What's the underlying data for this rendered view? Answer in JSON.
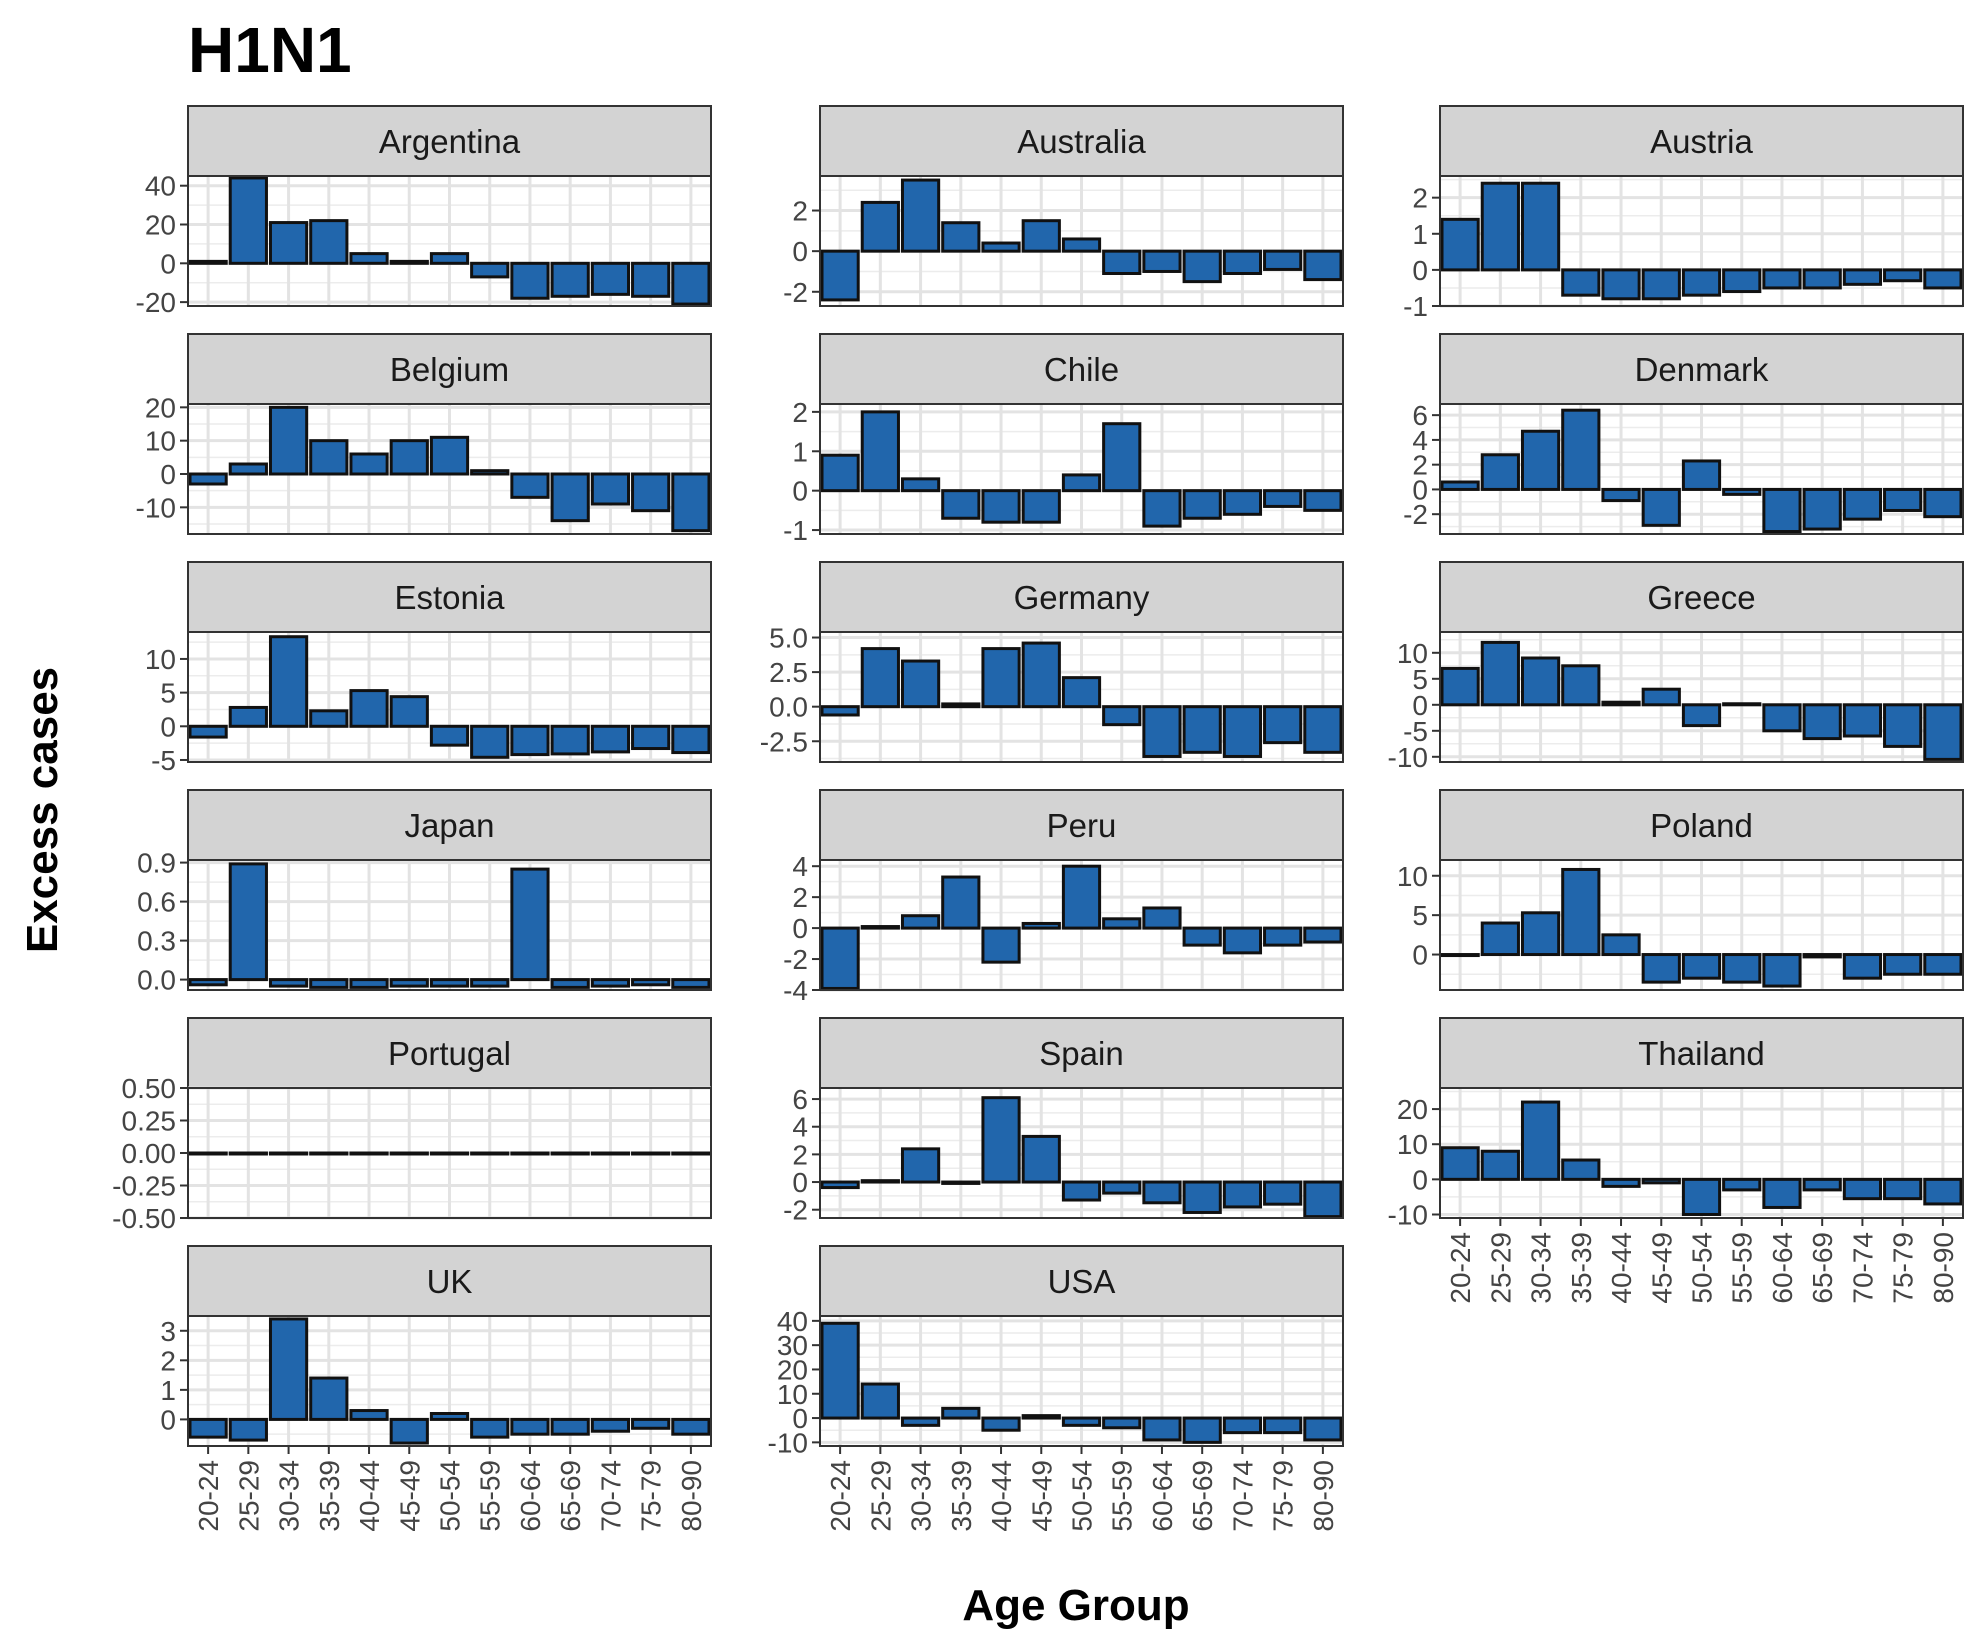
{
  "chart_data": {
    "type": "bar",
    "title": "H1N1",
    "xlabel": "Age Group",
    "ylabel": "Excess cases",
    "categories": [
      "20-24",
      "25-29",
      "30-34",
      "35-39",
      "40-44",
      "45-49",
      "50-54",
      "55-59",
      "60-64",
      "65-69",
      "70-74",
      "75-79",
      "80-90"
    ],
    "bar_color": "#2166ac",
    "strip_color": "#d3d3d3",
    "grid": true,
    "panels": [
      {
        "name": "Argentina",
        "ylim": [
          -22,
          45
        ],
        "ticks": [
          {
            "v": 40,
            "label": "40"
          },
          {
            "v": 20,
            "label": "20"
          },
          {
            "v": 0,
            "label": "0"
          },
          {
            "v": -20,
            "label": "-20"
          }
        ],
        "values": [
          1,
          44,
          21,
          22,
          5,
          1,
          5,
          -7,
          -18,
          -17,
          -16,
          -17,
          -21
        ]
      },
      {
        "name": "Australia",
        "ylim": [
          -2.7,
          3.7
        ],
        "ticks": [
          {
            "v": 2,
            "label": "2"
          },
          {
            "v": 0,
            "label": "0"
          },
          {
            "v": -2,
            "label": "-2"
          }
        ],
        "values": [
          -2.4,
          2.4,
          3.5,
          1.4,
          0.4,
          1.5,
          0.6,
          -1.1,
          -1.0,
          -1.5,
          -1.1,
          -0.9,
          -1.4
        ]
      },
      {
        "name": "Austria",
        "ylim": [
          -1,
          2.6
        ],
        "ticks": [
          {
            "v": 2,
            "label": "2"
          },
          {
            "v": 1,
            "label": "1"
          },
          {
            "v": 0,
            "label": "0"
          },
          {
            "v": -1,
            "label": "-1"
          }
        ],
        "values": [
          1.4,
          2.4,
          2.4,
          -0.7,
          -0.8,
          -0.8,
          -0.7,
          -0.6,
          -0.5,
          -0.5,
          -0.4,
          -0.3,
          -0.5
        ]
      },
      {
        "name": "Belgium",
        "ylim": [
          -18,
          21
        ],
        "ticks": [
          {
            "v": 20,
            "label": "20"
          },
          {
            "v": 10,
            "label": "10"
          },
          {
            "v": 0,
            "label": "0"
          },
          {
            "v": -10,
            "label": "-10"
          }
        ],
        "values": [
          -3,
          3,
          20,
          10,
          6,
          10,
          11,
          1,
          -7,
          -14,
          -9,
          -11,
          -17
        ]
      },
      {
        "name": "Chile",
        "ylim": [
          -1.1,
          2.2
        ],
        "ticks": [
          {
            "v": 2,
            "label": "2"
          },
          {
            "v": 1,
            "label": "1"
          },
          {
            "v": 0,
            "label": "0"
          },
          {
            "v": -1,
            "label": "-1"
          }
        ],
        "values": [
          0.9,
          2.0,
          0.3,
          -0.7,
          -0.8,
          -0.8,
          0.4,
          1.7,
          -0.9,
          -0.7,
          -0.6,
          -0.4,
          -0.5
        ]
      },
      {
        "name": "Denmark",
        "ylim": [
          -3.6,
          6.9
        ],
        "ticks": [
          {
            "v": 6,
            "label": "6"
          },
          {
            "v": 4,
            "label": "4"
          },
          {
            "v": 2,
            "label": "2"
          },
          {
            "v": 0,
            "label": "0"
          },
          {
            "v": -2,
            "label": "-2"
          }
        ],
        "values": [
          0.6,
          2.8,
          4.7,
          6.4,
          -0.9,
          -2.9,
          2.3,
          -0.4,
          -3.4,
          -3.2,
          -2.4,
          -1.7,
          -2.2
        ]
      },
      {
        "name": "Estonia",
        "ylim": [
          -5.3,
          14
        ],
        "ticks": [
          {
            "v": 10,
            "label": "10"
          },
          {
            "v": 5,
            "label": "5"
          },
          {
            "v": 0,
            "label": "0"
          },
          {
            "v": -5,
            "label": "-5"
          }
        ],
        "values": [
          -1.6,
          2.8,
          13.3,
          2.3,
          5.3,
          4.4,
          -2.8,
          -4.6,
          -4.2,
          -4.1,
          -3.8,
          -3.3,
          -3.9
        ]
      },
      {
        "name": "Germany",
        "ylim": [
          -4,
          5.4
        ],
        "ticks": [
          {
            "v": 5,
            "label": "5.0"
          },
          {
            "v": 2.5,
            "label": "2.5"
          },
          {
            "v": 0,
            "label": "0.0"
          },
          {
            "v": -2.5,
            "label": "-2.5"
          }
        ],
        "values": [
          -0.6,
          4.2,
          3.3,
          0.2,
          4.2,
          4.6,
          2.1,
          -1.3,
          -3.6,
          -3.3,
          -3.6,
          -2.6,
          -3.3
        ]
      },
      {
        "name": "Greece",
        "ylim": [
          -11,
          14
        ],
        "ticks": [
          {
            "v": 10,
            "label": "10"
          },
          {
            "v": 5,
            "label": "5"
          },
          {
            "v": 0,
            "label": "0"
          },
          {
            "v": -5,
            "label": "-5"
          },
          {
            "v": -10,
            "label": "-10"
          }
        ],
        "values": [
          7,
          12,
          9,
          7.5,
          0.5,
          3,
          -4,
          0.2,
          -5,
          -6.5,
          -6,
          -8,
          -10.5
        ]
      },
      {
        "name": "Japan",
        "ylim": [
          -0.08,
          0.92
        ],
        "ticks": [
          {
            "v": 0.9,
            "label": "0.9"
          },
          {
            "v": 0.6,
            "label": "0.6"
          },
          {
            "v": 0.3,
            "label": "0.3"
          },
          {
            "v": 0,
            "label": "0.0"
          }
        ],
        "values": [
          -0.04,
          0.89,
          -0.05,
          -0.06,
          -0.06,
          -0.05,
          -0.05,
          -0.05,
          0.85,
          -0.06,
          -0.05,
          -0.04,
          -0.06
        ]
      },
      {
        "name": "Peru",
        "ylim": [
          -4,
          4.4
        ],
        "ticks": [
          {
            "v": 4,
            "label": "4"
          },
          {
            "v": 2,
            "label": "2"
          },
          {
            "v": 0,
            "label": "0"
          },
          {
            "v": -2,
            "label": "-2"
          },
          {
            "v": -4,
            "label": "-4"
          }
        ],
        "values": [
          -3.9,
          0.1,
          0.8,
          3.3,
          -2.2,
          0.3,
          4.0,
          0.6,
          1.3,
          -1.1,
          -1.6,
          -1.1,
          -0.9
        ]
      },
      {
        "name": "Poland",
        "ylim": [
          -4.5,
          12
        ],
        "ticks": [
          {
            "v": 10,
            "label": "10"
          },
          {
            "v": 5,
            "label": "5"
          },
          {
            "v": 0,
            "label": "0"
          }
        ],
        "values": [
          0,
          4,
          5.3,
          10.8,
          2.5,
          -3.5,
          -3,
          -3.5,
          -4,
          -0.3,
          -3,
          -2.5,
          -2.5
        ]
      },
      {
        "name": "Portugal",
        "ylim": [
          -0.5,
          0.5
        ],
        "ticks": [
          {
            "v": 0.5,
            "label": "0.50"
          },
          {
            "v": 0.25,
            "label": "0.25"
          },
          {
            "v": 0,
            "label": "0.00"
          },
          {
            "v": -0.25,
            "label": "-0.25"
          },
          {
            "v": -0.5,
            "label": "-0.50"
          }
        ],
        "values": [
          0,
          0,
          0,
          0,
          0,
          0,
          0,
          0,
          0,
          0,
          0,
          0,
          0
        ]
      },
      {
        "name": "Spain",
        "ylim": [
          -2.6,
          6.8
        ],
        "ticks": [
          {
            "v": 6,
            "label": "6"
          },
          {
            "v": 4,
            "label": "4"
          },
          {
            "v": 2,
            "label": "2"
          },
          {
            "v": 0,
            "label": "0"
          },
          {
            "v": -2,
            "label": "-2"
          }
        ],
        "values": [
          -0.4,
          0.1,
          2.4,
          -0.1,
          6.1,
          3.3,
          -1.3,
          -0.8,
          -1.5,
          -2.2,
          -1.8,
          -1.6,
          -2.5
        ]
      },
      {
        "name": "Thailand",
        "ylim": [
          -11,
          26
        ],
        "ticks": [
          {
            "v": 20,
            "label": "20"
          },
          {
            "v": 10,
            "label": "10"
          },
          {
            "v": 0,
            "label": "0"
          },
          {
            "v": -10,
            "label": "-10"
          }
        ],
        "values": [
          9,
          8,
          22,
          5.5,
          -2,
          -1,
          -10,
          -3,
          -8,
          -3,
          -5.5,
          -5.5,
          -7
        ]
      },
      {
        "name": "UK",
        "ylim": [
          -0.9,
          3.5
        ],
        "ticks": [
          {
            "v": 3,
            "label": "3"
          },
          {
            "v": 2,
            "label": "2"
          },
          {
            "v": 1,
            "label": "1"
          },
          {
            "v": 0,
            "label": "0"
          }
        ],
        "values": [
          -0.6,
          -0.7,
          3.4,
          1.4,
          0.3,
          -0.8,
          0.2,
          -0.6,
          -0.5,
          -0.5,
          -0.4,
          -0.3,
          -0.5
        ]
      },
      {
        "name": "USA",
        "ylim": [
          -11.5,
          42
        ],
        "ticks": [
          {
            "v": 40,
            "label": "40"
          },
          {
            "v": 30,
            "label": "30"
          },
          {
            "v": 20,
            "label": "20"
          },
          {
            "v": 10,
            "label": "10"
          },
          {
            "v": 0,
            "label": "0"
          },
          {
            "v": -10,
            "label": "-10"
          }
        ],
        "values": [
          39,
          14,
          -3,
          4,
          -5,
          1,
          -3,
          -4,
          -9,
          -10,
          -6,
          -6,
          -9
        ]
      }
    ]
  }
}
